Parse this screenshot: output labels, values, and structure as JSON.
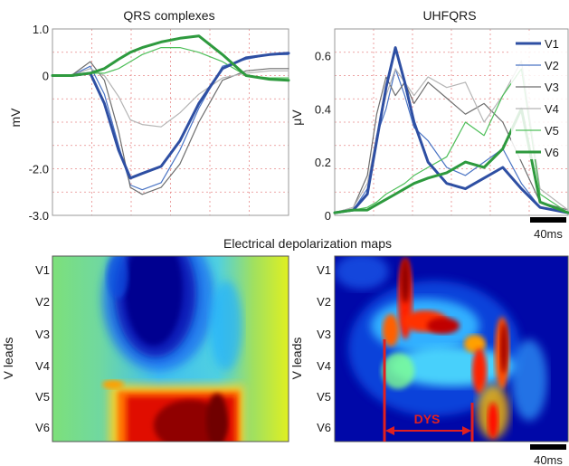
{
  "chart_data": [
    {
      "type": "line",
      "title": "QRS complexes",
      "ylabel": "mV",
      "ylim": [
        -3.0,
        1.0
      ],
      "yticks": [
        "1.0",
        "0",
        "-2.0",
        "-3.0"
      ],
      "grid": true,
      "series": [
        {
          "name": "V1",
          "color": "#2e4fa3",
          "width": 3.0,
          "x": [
            0,
            8,
            16,
            22,
            28,
            33,
            38,
            46,
            54,
            62,
            72,
            82,
            92,
            100
          ],
          "y": [
            0,
            0,
            0.05,
            -0.6,
            -1.6,
            -2.2,
            -2.1,
            -1.95,
            -1.4,
            -0.6,
            0.15,
            0.38,
            0.45,
            0.48
          ]
        },
        {
          "name": "V2",
          "color": "#4a74c4",
          "width": 1.2,
          "x": [
            0,
            8,
            16,
            22,
            28,
            33,
            38,
            46,
            54,
            62,
            72,
            82,
            92,
            100
          ],
          "y": [
            0,
            0,
            0.2,
            -0.4,
            -1.5,
            -2.35,
            -2.45,
            -2.3,
            -1.6,
            -0.7,
            0.2,
            0.35,
            0.45,
            0.45
          ]
        },
        {
          "name": "V3",
          "color": "#6e6e6e",
          "width": 1.2,
          "x": [
            0,
            8,
            16,
            22,
            28,
            33,
            38,
            46,
            54,
            62,
            72,
            82,
            92,
            100
          ],
          "y": [
            0,
            0,
            0.3,
            -0.1,
            -1.2,
            -2.4,
            -2.55,
            -2.4,
            -1.9,
            -1.0,
            -0.1,
            0.1,
            0.15,
            0.15
          ]
        },
        {
          "name": "V4",
          "color": "#b5b5b5",
          "width": 1.2,
          "x": [
            0,
            8,
            16,
            22,
            28,
            33,
            38,
            46,
            54,
            62,
            72,
            82,
            92,
            100
          ],
          "y": [
            0,
            0,
            0.15,
            0.0,
            -0.45,
            -0.95,
            -1.05,
            -1.1,
            -0.8,
            -0.4,
            -0.05,
            0.05,
            0.1,
            0.1
          ]
        },
        {
          "name": "V5",
          "color": "#4fbf5a",
          "width": 1.2,
          "x": [
            0,
            8,
            16,
            22,
            28,
            33,
            38,
            46,
            54,
            62,
            72,
            82,
            92,
            100
          ],
          "y": [
            0,
            0,
            0.05,
            0.05,
            0.15,
            0.3,
            0.45,
            0.6,
            0.6,
            0.5,
            0.3,
            0.0,
            -0.05,
            -0.05
          ]
        },
        {
          "name": "V6",
          "color": "#2e9a3e",
          "width": 3.0,
          "x": [
            0,
            8,
            16,
            22,
            28,
            33,
            38,
            46,
            54,
            62,
            72,
            82,
            92,
            100
          ],
          "y": [
            0,
            0,
            0.05,
            0.15,
            0.35,
            0.5,
            0.6,
            0.72,
            0.8,
            0.85,
            0.45,
            0.0,
            -0.08,
            -0.1
          ]
        }
      ]
    },
    {
      "type": "line",
      "title": "UHFQRS",
      "ylabel": "μV",
      "ylim": [
        0,
        0.7
      ],
      "yticks": [
        "0.6",
        "0.4",
        "0.2",
        "0"
      ],
      "grid": true,
      "legend": "top-right",
      "scale_bar": "40ms",
      "series": [
        {
          "name": "V1",
          "color": "#2e4fa3",
          "width": 3.0,
          "x": [
            0,
            8,
            14,
            18,
            22,
            26,
            30,
            34,
            40,
            48,
            56,
            64,
            72,
            80,
            88,
            100
          ],
          "y": [
            0.01,
            0.02,
            0.08,
            0.28,
            0.48,
            0.63,
            0.5,
            0.35,
            0.2,
            0.12,
            0.1,
            0.14,
            0.18,
            0.1,
            0.03,
            0.01
          ]
        },
        {
          "name": "V2",
          "color": "#4a74c4",
          "width": 1.2,
          "x": [
            0,
            8,
            14,
            18,
            22,
            26,
            30,
            34,
            40,
            48,
            56,
            64,
            72,
            80,
            88,
            100
          ],
          "y": [
            0.01,
            0.02,
            0.1,
            0.3,
            0.4,
            0.55,
            0.45,
            0.33,
            0.28,
            0.18,
            0.15,
            0.2,
            0.25,
            0.12,
            0.03,
            0.01
          ]
        },
        {
          "name": "V3",
          "color": "#6e6e6e",
          "width": 1.2,
          "x": [
            0,
            8,
            14,
            18,
            22,
            26,
            30,
            34,
            40,
            48,
            56,
            64,
            72,
            80,
            88,
            100
          ],
          "y": [
            0.01,
            0.03,
            0.15,
            0.38,
            0.52,
            0.45,
            0.5,
            0.42,
            0.5,
            0.44,
            0.38,
            0.42,
            0.35,
            0.2,
            0.05,
            0.02
          ]
        },
        {
          "name": "V4",
          "color": "#b5b5b5",
          "width": 1.2,
          "x": [
            0,
            8,
            14,
            18,
            22,
            26,
            30,
            34,
            40,
            48,
            56,
            64,
            72,
            80,
            88,
            100
          ],
          "y": [
            0.01,
            0.03,
            0.12,
            0.3,
            0.45,
            0.55,
            0.5,
            0.45,
            0.52,
            0.48,
            0.5,
            0.35,
            0.45,
            0.58,
            0.1,
            0.02
          ]
        },
        {
          "name": "V5",
          "color": "#4fbf5a",
          "width": 1.2,
          "x": [
            0,
            8,
            14,
            18,
            22,
            26,
            30,
            34,
            40,
            48,
            56,
            64,
            72,
            80,
            88,
            100
          ],
          "y": [
            0.01,
            0.02,
            0.03,
            0.05,
            0.08,
            0.1,
            0.12,
            0.15,
            0.18,
            0.22,
            0.35,
            0.3,
            0.45,
            0.55,
            0.08,
            0.01
          ]
        },
        {
          "name": "V6",
          "color": "#2e9a3e",
          "width": 3.0,
          "x": [
            0,
            8,
            14,
            18,
            22,
            26,
            30,
            34,
            40,
            48,
            56,
            64,
            72,
            80,
            88,
            100
          ],
          "y": [
            0.01,
            0.02,
            0.02,
            0.04,
            0.06,
            0.08,
            0.1,
            0.12,
            0.14,
            0.16,
            0.2,
            0.18,
            0.25,
            0.4,
            0.05,
            0.01
          ]
        }
      ]
    },
    {
      "type": "heatmap",
      "title": "Electrical depolarization maps",
      "ylabel": "V leads",
      "rows": [
        "V1",
        "V2",
        "V3",
        "V4",
        "V5",
        "V6"
      ],
      "panels": [
        {
          "name": "QRS map",
          "scale_bar": ""
        },
        {
          "name": "UHFQRS map",
          "annotation": "DYS",
          "scale_bar": "40ms"
        }
      ]
    }
  ],
  "section_title": "Electrical depolarization maps",
  "colors": {
    "grid": "#e88a8a",
    "dys_marker": "#d42020",
    "frame": "#555555"
  }
}
